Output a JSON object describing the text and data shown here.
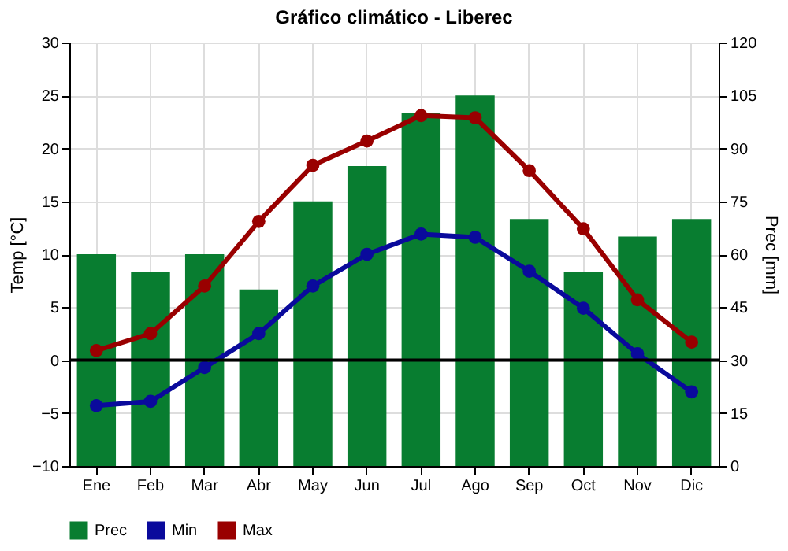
{
  "chart_data": {
    "type": "bar",
    "title": "Gráfico climático - Liberec",
    "categories": [
      "Ene",
      "Feb",
      "Mar",
      "Abr",
      "May",
      "Jun",
      "Jul",
      "Ago",
      "Sep",
      "Oct",
      "Nov",
      "Dic"
    ],
    "series": [
      {
        "name": "Prec",
        "axis": "y2",
        "color": "#087d30",
        "values": [
          60,
          55,
          60,
          50,
          75,
          85,
          100,
          105,
          70,
          55,
          65,
          70
        ]
      },
      {
        "name": "Min",
        "type": "line",
        "color": "#0a0a9c",
        "values": [
          -4.3,
          -3.9,
          -0.7,
          2.5,
          7.0,
          10.0,
          11.9,
          11.6,
          8.4,
          4.9,
          0.6,
          -3.0
        ]
      },
      {
        "name": "Max",
        "type": "line",
        "color": "#990000",
        "values": [
          0.9,
          2.5,
          7.0,
          13.1,
          18.4,
          20.7,
          23.1,
          22.9,
          17.9,
          12.4,
          5.7,
          1.7
        ]
      }
    ],
    "ylabel": "Temp [°C]",
    "y2label": "Prec [mm]",
    "ylim": [
      -10,
      30
    ],
    "yticks": [
      -10,
      -5,
      0,
      5,
      10,
      15,
      20,
      25,
      30
    ],
    "y2lim": [
      0,
      120
    ],
    "y2ticks": [
      0,
      15,
      30,
      45,
      60,
      75,
      90,
      105,
      120
    ],
    "ref_lines": [
      {
        "axis": "y",
        "value": 0,
        "color": "#000000"
      }
    ],
    "grid": true,
    "legend": "bottom",
    "marker": "circle",
    "line_style": "solid"
  }
}
